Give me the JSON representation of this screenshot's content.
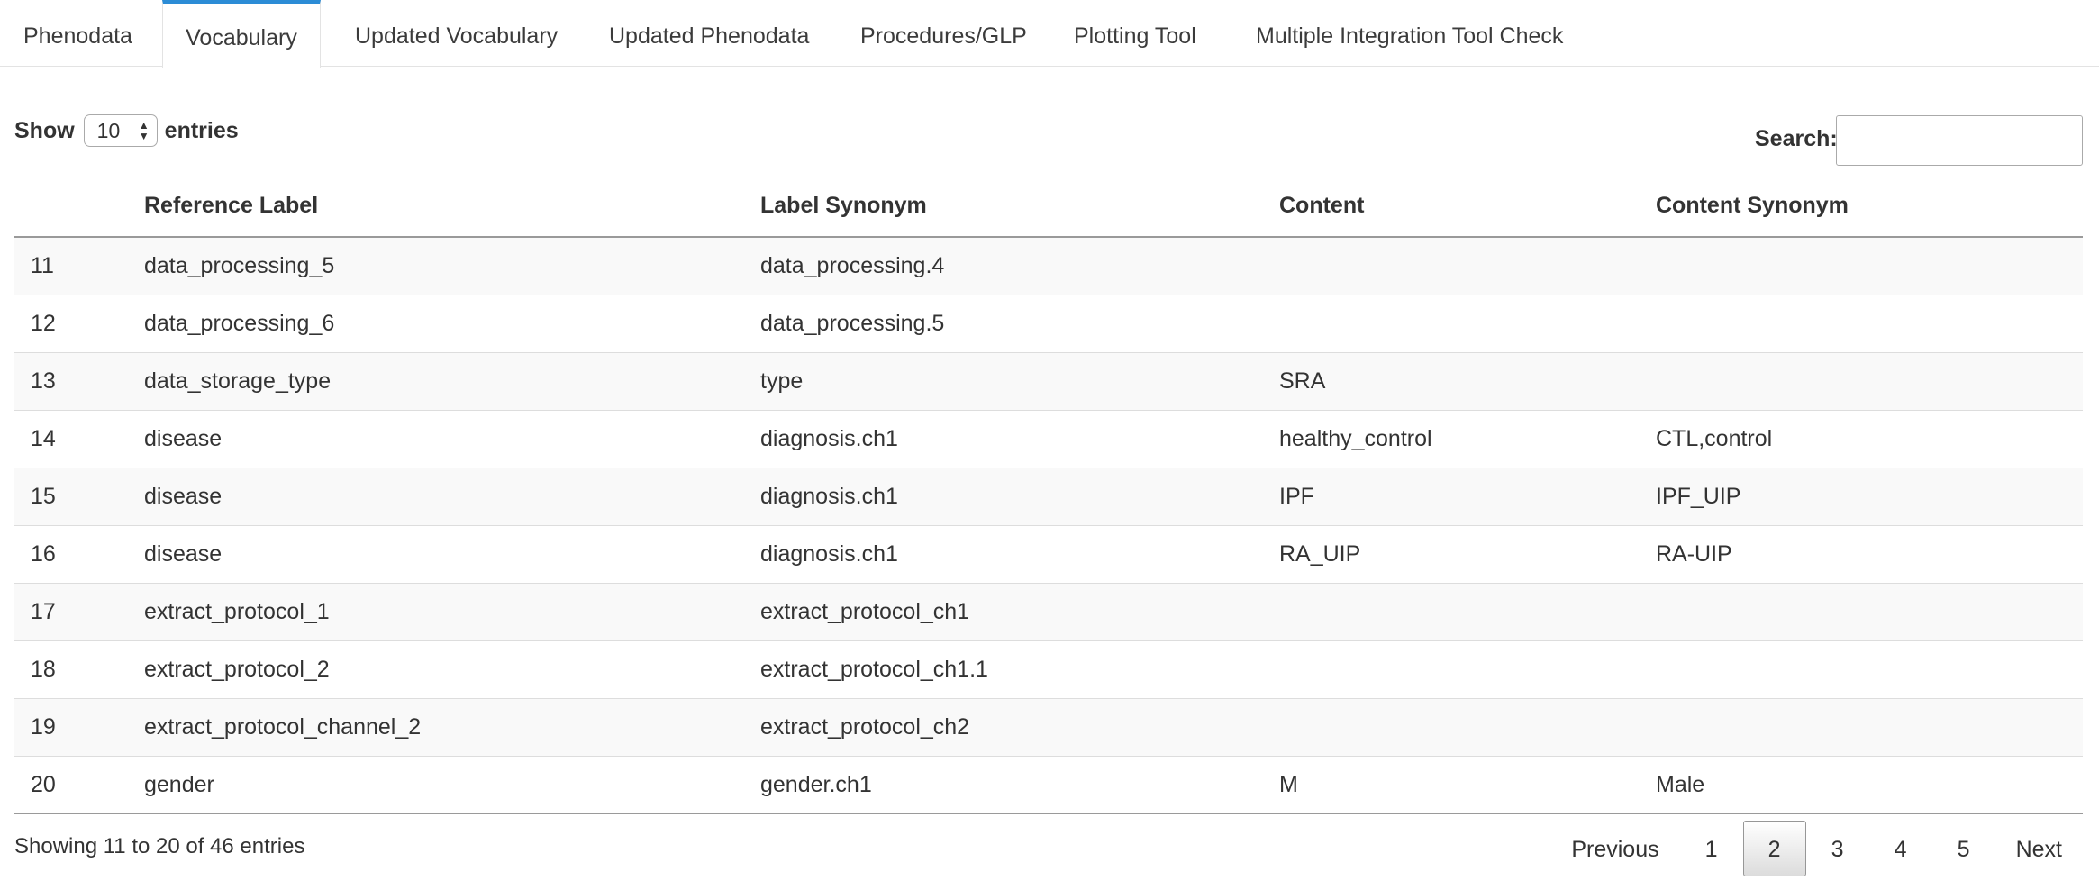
{
  "tabs": [
    {
      "label": "Phenodata"
    },
    {
      "label": "Vocabulary",
      "active": true
    },
    {
      "label": "Updated Vocabulary"
    },
    {
      "label": "Updated Phenodata"
    },
    {
      "label": "Procedures/GLP"
    },
    {
      "label": "Plotting Tool"
    },
    {
      "label": "Multiple Integration Tool Check"
    }
  ],
  "length_control": {
    "show_label": "Show",
    "value": "10",
    "entries_label": "entries"
  },
  "search": {
    "label": "Search:",
    "value": "",
    "placeholder": ""
  },
  "table": {
    "columns": [
      "",
      "Reference Label",
      "Label Synonym",
      "Content",
      "Content Synonym"
    ],
    "rows": [
      [
        "11",
        "data_processing_5",
        "data_processing.4",
        "",
        ""
      ],
      [
        "12",
        "data_processing_6",
        "data_processing.5",
        "",
        ""
      ],
      [
        "13",
        "data_storage_type",
        "type",
        "SRA",
        ""
      ],
      [
        "14",
        "disease",
        "diagnosis.ch1",
        "healthy_control",
        "CTL,control"
      ],
      [
        "15",
        "disease",
        "diagnosis.ch1",
        "IPF",
        "IPF_UIP"
      ],
      [
        "16",
        "disease",
        "diagnosis.ch1",
        "RA_UIP",
        "RA-UIP"
      ],
      [
        "17",
        "extract_protocol_1",
        "extract_protocol_ch1",
        "",
        ""
      ],
      [
        "18",
        "extract_protocol_2",
        "extract_protocol_ch1.1",
        "",
        ""
      ],
      [
        "19",
        "extract_protocol_channel_2",
        "extract_protocol_ch2",
        "",
        ""
      ],
      [
        "20",
        "gender",
        "gender.ch1",
        "M",
        "Male"
      ]
    ]
  },
  "footer": {
    "info": "Showing 11 to 20 of 46 entries",
    "previous_label": "Previous",
    "next_label": "Next",
    "pages": [
      "1",
      "2",
      "3",
      "4",
      "5"
    ],
    "current_page": "2"
  },
  "colors": {
    "active_tab_accent": "#2b8cd6"
  }
}
